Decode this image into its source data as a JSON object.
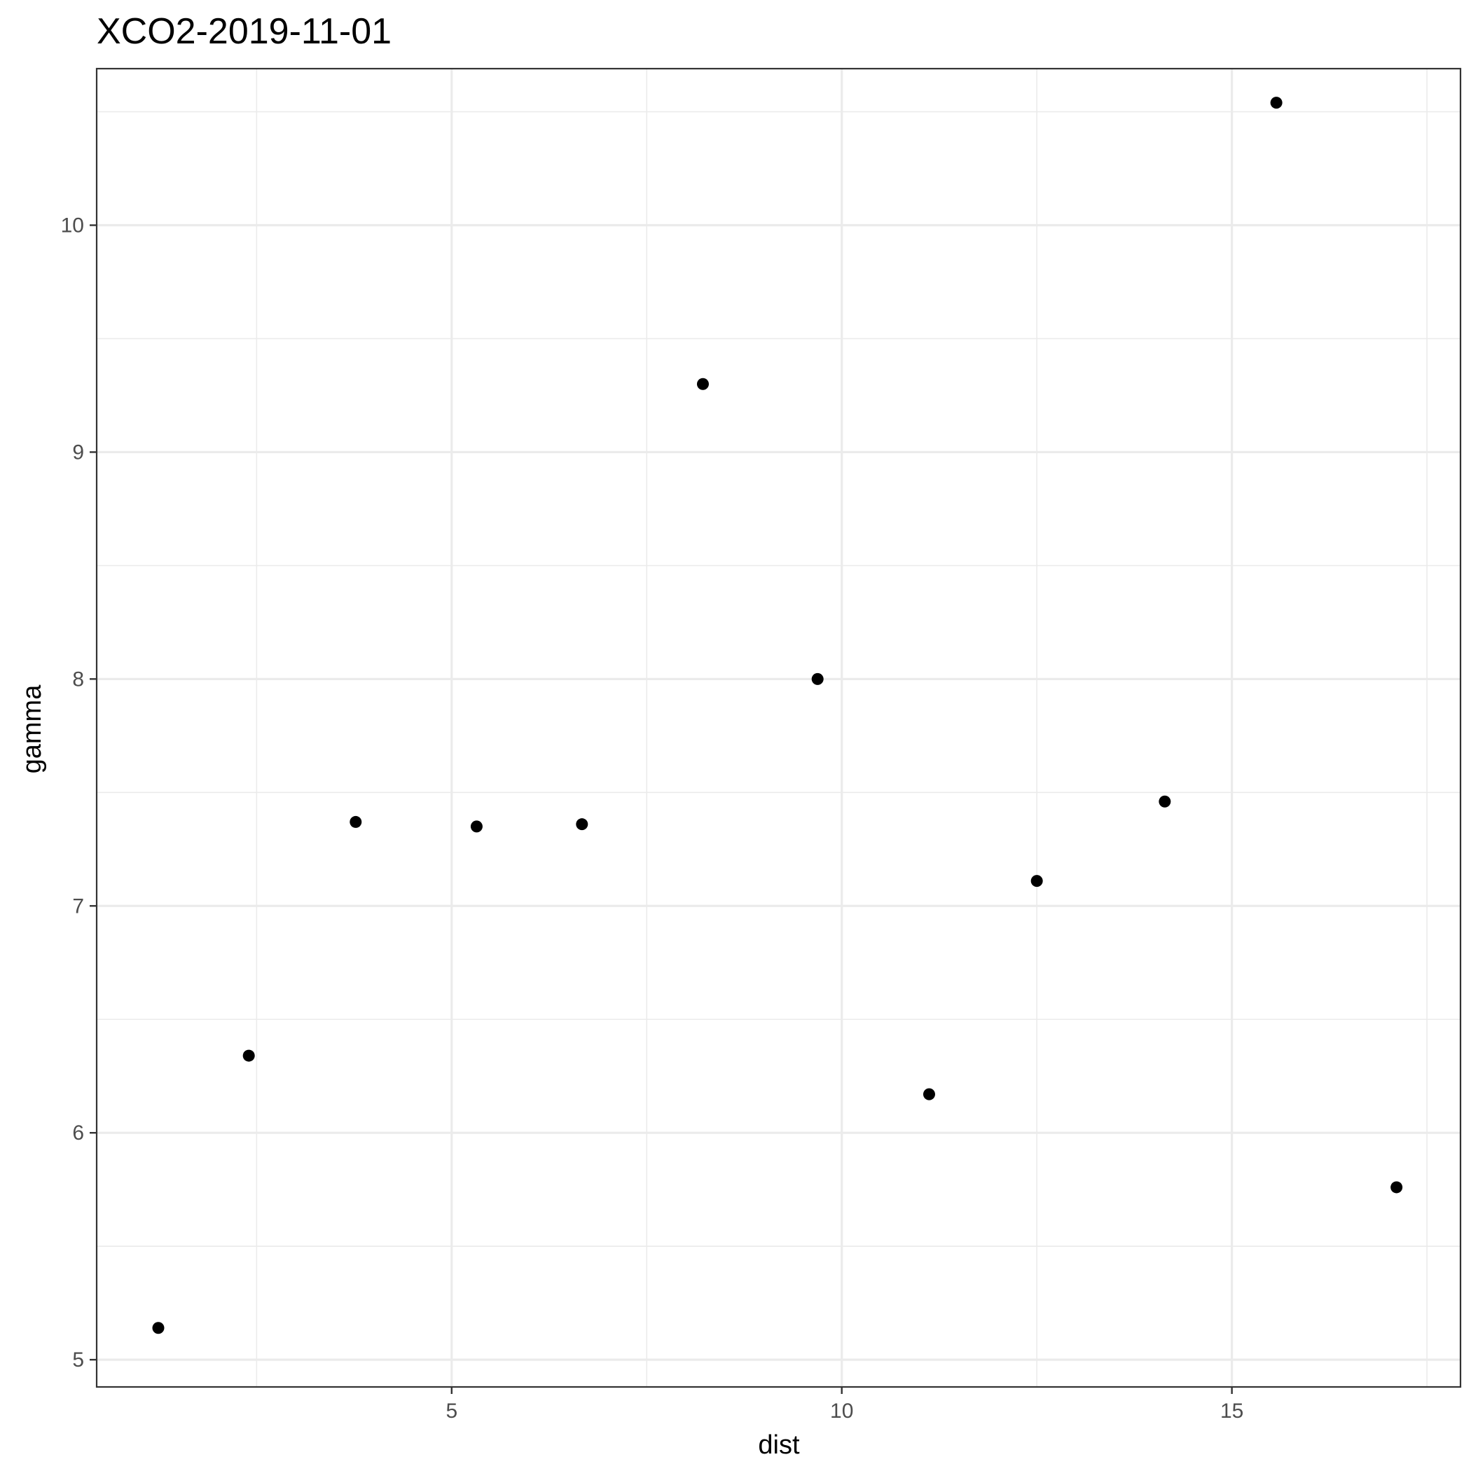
{
  "chart_data": {
    "type": "scatter",
    "title": "XCO2-2019-11-01",
    "xlabel": "dist",
    "ylabel": "gamma",
    "xlim": [
      0.45,
      17.93
    ],
    "ylim": [
      4.88,
      10.69
    ],
    "x_ticks": [
      5,
      10,
      15
    ],
    "x_minor_ticks": [
      2.5,
      7.5,
      12.5,
      17.5
    ],
    "y_ticks": [
      5,
      6,
      7,
      8,
      9,
      10
    ],
    "y_minor_ticks": [
      5.5,
      6.5,
      7.5,
      8.5,
      9.5,
      10.5
    ],
    "grid": true,
    "point_color": "#000000",
    "points": [
      {
        "x": 1.24,
        "y": 5.14
      },
      {
        "x": 2.4,
        "y": 6.34
      },
      {
        "x": 3.77,
        "y": 7.37
      },
      {
        "x": 5.32,
        "y": 7.35
      },
      {
        "x": 6.67,
        "y": 7.36
      },
      {
        "x": 8.22,
        "y": 9.3
      },
      {
        "x": 9.69,
        "y": 8.0
      },
      {
        "x": 11.12,
        "y": 6.17
      },
      {
        "x": 12.5,
        "y": 7.11
      },
      {
        "x": 14.14,
        "y": 7.46
      },
      {
        "x": 15.57,
        "y": 10.54
      },
      {
        "x": 17.11,
        "y": 5.76
      }
    ]
  }
}
